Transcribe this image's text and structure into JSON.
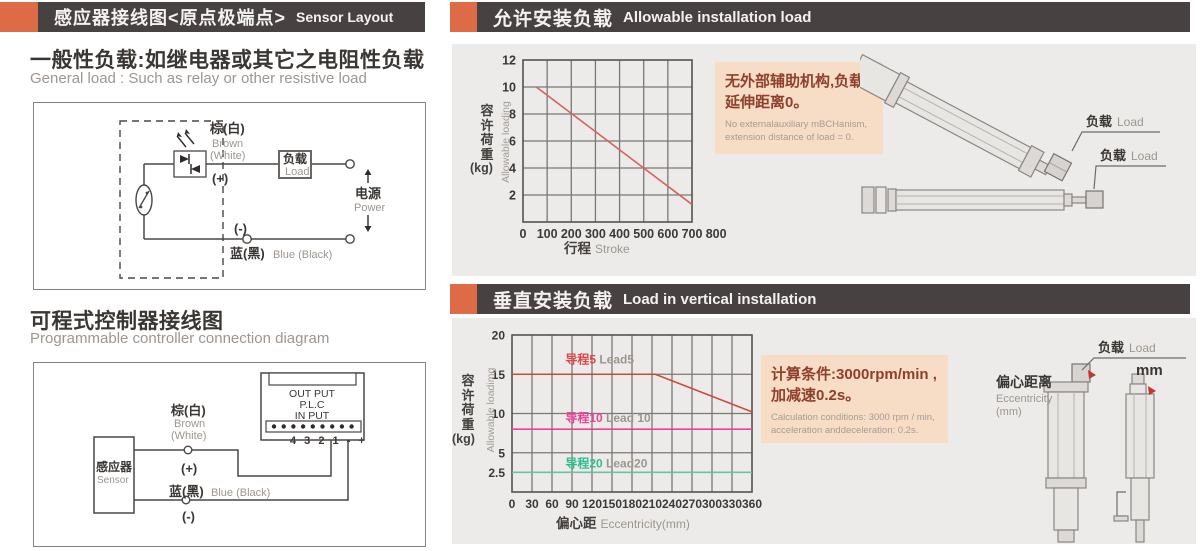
{
  "colors": {
    "header_bar": "#474241",
    "accent_orange": "#dd6b45",
    "panel": "#edebe9",
    "note_bg": "#f7dcc6",
    "note_text": "#8e402d",
    "ink": "#3a3633",
    "muted": "#9d968f",
    "line_red": "#d4645c",
    "line_red2": "#cc4b41",
    "line_pink": "#e8449a",
    "line_green": "#5fc8a4"
  },
  "left": {
    "header": {
      "zh": "感应器接线图<原点极端点>",
      "en": "Sensor Layout"
    },
    "general": {
      "title_zh": "一般性负载:如继电器或其它之电阻性负载",
      "title_en": "General load : Such as relay or other resistive load",
      "labels": {
        "brown_zh": "棕(白)",
        "brown_en1": "Brown",
        "brown_en2": "(White)",
        "plus": "(+)",
        "minus": "(-)",
        "load_zh": "负载",
        "load_en": "Load",
        "power_zh": "电源",
        "power_en": "Power",
        "blue_zh": "蓝(黑)",
        "blue_en": "Blue (Black)"
      }
    },
    "plc": {
      "title_zh": "可程式控制器接线图",
      "title_en": "Programmable controller connection diagram",
      "labels": {
        "sensor_zh": "感应器",
        "sensor_en": "Sensor",
        "out_put": "OUT PUT",
        "plc": "P.L.C",
        "in_put": "IN PUT",
        "terminals": "4 3 2 1 - +",
        "brown_zh": "棕(白)",
        "brown_en1": "Brown",
        "brown_en2": "(White)",
        "plus": "(+)",
        "minus": "(-)",
        "blue_zh": "蓝(黑)",
        "blue_en": "Blue (Black)"
      }
    }
  },
  "install": {
    "header": {
      "zh": "允许安装负载",
      "en": "Allowable installation load"
    },
    "note_zh1": "无外部辅助机构,负载",
    "note_zh2": "延伸距离0。",
    "note_en1": "No externalauxiliary mBCHanism,",
    "note_en2": "extension distance of load = 0.",
    "load1_zh": "负载",
    "load1_en": "Load",
    "load2_zh": "负载",
    "load2_en": "Load"
  },
  "vertical": {
    "header": {
      "zh": "垂直安装负载",
      "en": "Load in vertical installation"
    },
    "note_zh1": "计算条件:3000rpm/min ,",
    "note_zh2": "加减速0.2s。",
    "note_en1": "Calculation conditions: 3000 rpm / min,",
    "note_en2": "acceleration anddeceleration: 0.2s.",
    "load_zh": "负载",
    "load_en": "Load",
    "mm": "mm",
    "ecc_zh": "偏心距离",
    "ecc_en": "Eccentricity",
    "ecc_unit": "(mm)"
  },
  "chart_data": [
    {
      "type": "line",
      "title": "允许安装负载 Allowable installation load",
      "xlabel_zh": "行程",
      "xlabel_en": "Stroke",
      "ylabel_zh": "容许荷重",
      "ylabel_unit": "(kg)",
      "ylabel_en": "Allowable loading",
      "xlim": [
        0,
        700
      ],
      "ylim": [
        0,
        12
      ],
      "x_ticks": [
        0,
        100,
        200,
        300,
        400,
        500,
        600,
        700,
        800
      ],
      "y_ticks": [
        2,
        4,
        6,
        8,
        10,
        12
      ],
      "grid": true,
      "legend": "none",
      "series": [
        {
          "name": "allowable-load",
          "color": "#d4645c",
          "points": [
            [
              55,
              10
            ],
            [
              700,
              1.3
            ]
          ]
        }
      ]
    },
    {
      "type": "line",
      "title": "垂直安装负载 Load in vertical installation",
      "xlabel_zh": "偏心距",
      "xlabel_en": "Eccentricity(mm)",
      "ylabel_zh": "容许荷重",
      "ylabel_unit": "(kg)",
      "ylabel_en": "Allowable loadimg",
      "xlim": [
        0,
        360
      ],
      "ylim": [
        0,
        20
      ],
      "x_ticks": [
        0,
        30,
        60,
        90,
        120,
        150,
        180,
        210,
        240,
        270,
        300,
        330,
        360
      ],
      "y_ticks": [
        2.5,
        5,
        10,
        15,
        20
      ],
      "grid": true,
      "legend": "inline",
      "series": [
        {
          "label_zh": "导程5",
          "label_en": " Lead5",
          "label_color": "#e04848",
          "color": "#cc4b41",
          "points": [
            [
              0,
              15
            ],
            [
              215,
              15
            ],
            [
              360,
              10.2
            ]
          ],
          "label_pos": [
            80,
            16.4
          ]
        },
        {
          "label_zh": "导程10",
          "label_en": " Lead 10",
          "label_color": "#e8449a",
          "color": "#e8449a",
          "points": [
            [
              0,
              8
            ],
            [
              360,
              8
            ]
          ],
          "label_pos": [
            80,
            8.9
          ]
        },
        {
          "label_zh": "导程20",
          "label_en": " Lead20",
          "label_color": "#2fbd92",
          "color": "#5fc8a4",
          "points": [
            [
              0,
              2.5
            ],
            [
              360,
              2.5
            ]
          ],
          "label_pos": [
            80,
            3.1
          ]
        }
      ]
    }
  ]
}
